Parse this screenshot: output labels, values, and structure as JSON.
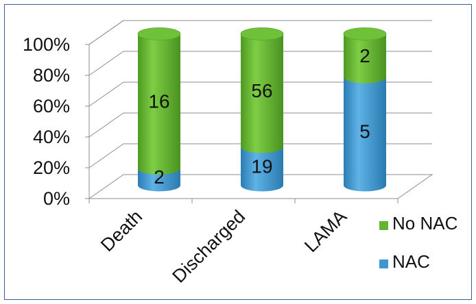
{
  "chart_data": {
    "type": "bar",
    "stacked": "percent",
    "style": "3d-cylinder",
    "categories": [
      "Death",
      "Discharged",
      "LAMA"
    ],
    "series": [
      {
        "name": "NAC",
        "values": [
          2,
          19,
          5
        ],
        "color": "#3f97cf"
      },
      {
        "name": "No NAC",
        "values": [
          16,
          56,
          2
        ],
        "color": "#64b432"
      }
    ],
    "y_ticks": [
      "0%",
      "20%",
      "40%",
      "60%",
      "80%",
      "100%"
    ],
    "ylim": [
      0,
      100
    ],
    "grid": true,
    "legend": {
      "position": "right",
      "entries": [
        "No NAC",
        "NAC"
      ]
    },
    "title": "",
    "xlabel": "",
    "ylabel": ""
  }
}
